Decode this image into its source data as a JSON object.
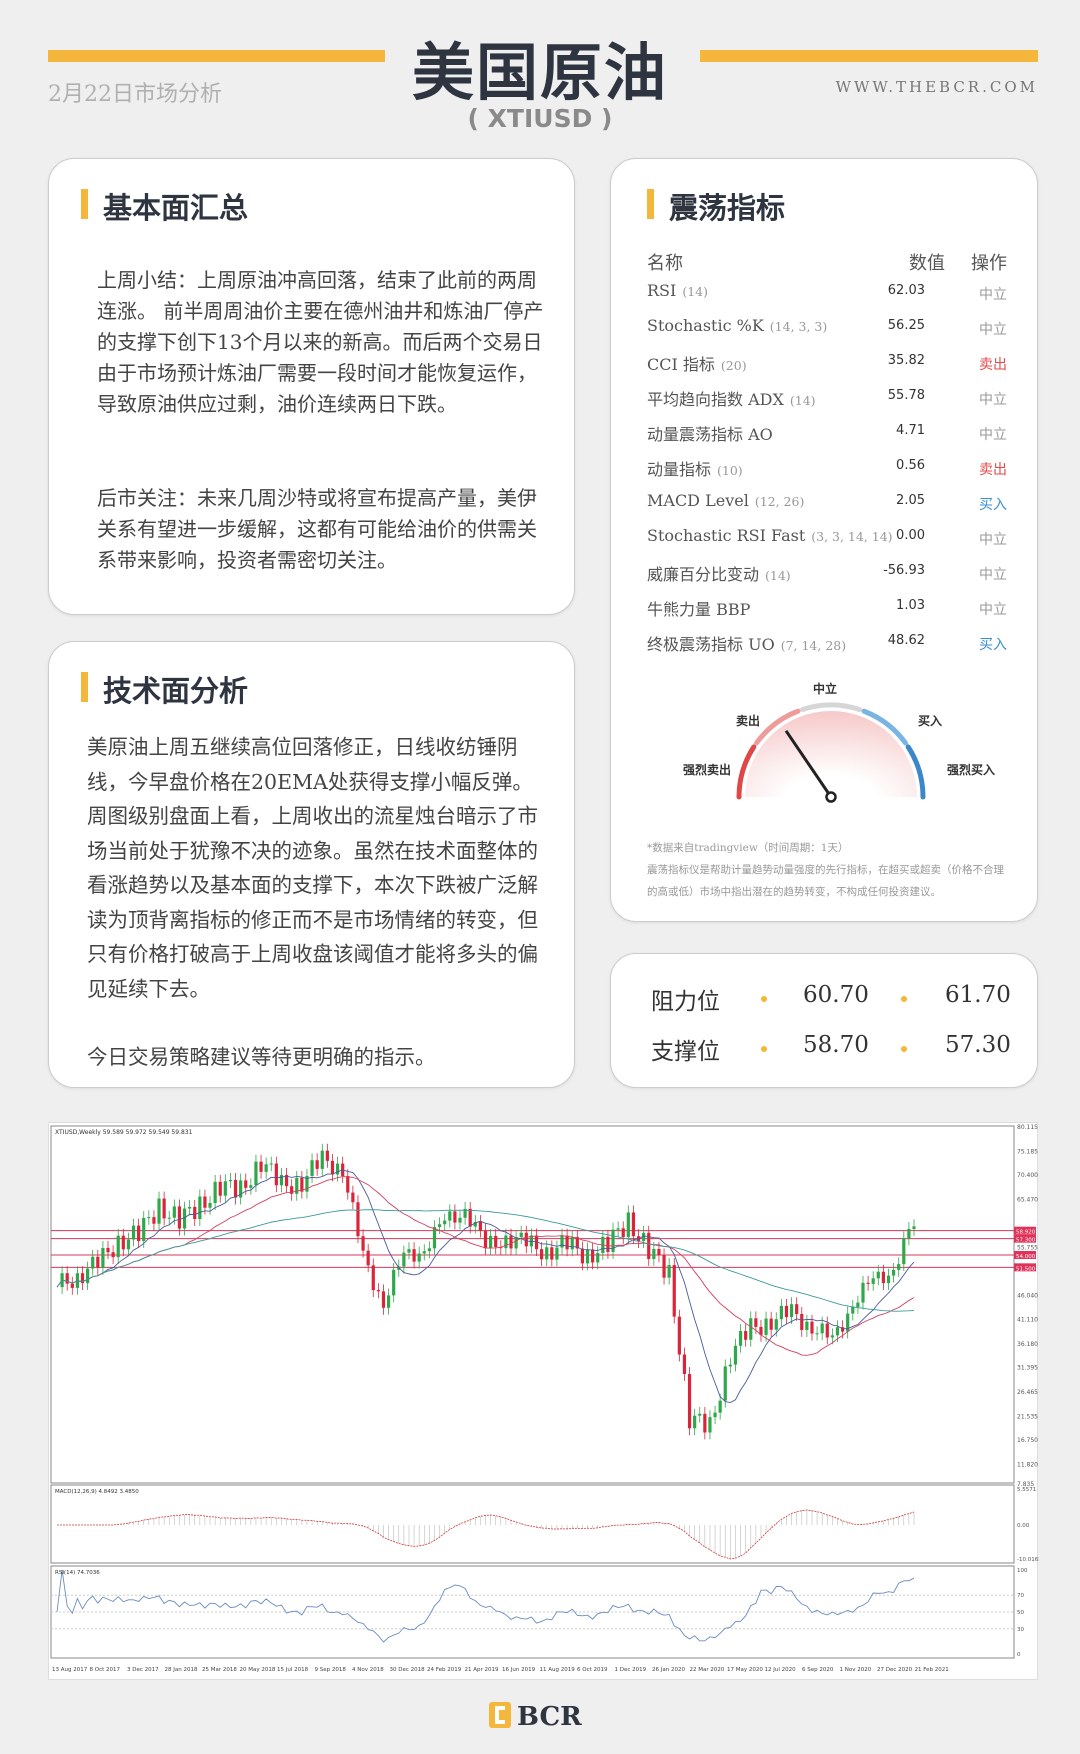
{
  "header": {
    "title": "美国原油",
    "symbol": "( XTIUSD )",
    "date": "2月22日市场分析",
    "website": "WWW.THEBCR.COM",
    "accent": "#f4b63b"
  },
  "fundamentals": {
    "heading": "基本面汇总",
    "para1": "上周小结：上周原油冲高回落，结束了此前的两周连涨。 前半周周油价主要在德州油井和炼油厂停产的支撑下创下13个月以来的新高。而后两个交易日由于市场预计炼油厂需要一段时间才能恢复运作，导致原油供应过剩，油价连续两日下跌。",
    "para2": "后市关注：未来几周沙特或将宣布提高产量，美伊关系有望进一步缓解，这都有可能给油价的供需关系带来影响，投资者需密切关注。"
  },
  "technical": {
    "heading": "技术面分析",
    "para1": "美原油上周五继续高位回落修正，日线收纺锤阴线，今早盘价格在20EMA处获得支撑小幅反弹。周图级别盘面上看，上周收出的流星烛台暗示了市场当前处于犹豫不决的迹象。虽然在技术面整体的看涨趋势以及基本面的支撑下，本次下跌被广泛解读为顶背离指标的修正而不是市场情绪的转变，但只有价格打破高于上周收盘该阈值才能将多头的偏见延续下去。",
    "para2": "今日交易策略建议等待更明确的指示。"
  },
  "oscillators": {
    "heading": "震荡指标",
    "col_name": "名称",
    "col_value": "数值",
    "col_action": "操作",
    "colors": {
      "neutral": "#999999",
      "sell": "#e24a4a",
      "buy": "#3a8fd6"
    },
    "rows": [
      {
        "name": "RSI",
        "params": "(14)",
        "value": "62.03",
        "action": "中立",
        "type": "neutral"
      },
      {
        "name": "Stochastic %K",
        "params": "(14, 3, 3)",
        "value": "56.25",
        "action": "中立",
        "type": "neutral"
      },
      {
        "name": "CCI 指标",
        "params": "(20)",
        "value": "35.82",
        "action": "卖出",
        "type": "sell"
      },
      {
        "name": "平均趋向指数 ADX",
        "params": "(14)",
        "value": "55.78",
        "action": "中立",
        "type": "neutral"
      },
      {
        "name": "动量震荡指标 AO",
        "params": "",
        "value": "4.71",
        "action": "中立",
        "type": "neutral"
      },
      {
        "name": "动量指标",
        "params": "(10)",
        "value": "0.56",
        "action": "卖出",
        "type": "sell"
      },
      {
        "name": "MACD Level",
        "params": "(12, 26)",
        "value": "2.05",
        "action": "买入",
        "type": "buy"
      },
      {
        "name": "Stochastic RSI Fast",
        "params": "(3, 3, 14, 14)",
        "value": "0.00",
        "action": "中立",
        "type": "neutral"
      },
      {
        "name": "威廉百分比变动",
        "params": "(14)",
        "value": "-56.93",
        "action": "中立",
        "type": "neutral"
      },
      {
        "name": "牛熊力量 BBP",
        "params": "",
        "value": "1.03",
        "action": "中立",
        "type": "neutral"
      },
      {
        "name": "终极震荡指标 UO",
        "params": "(7, 14, 28)",
        "value": "48.62",
        "action": "买入",
        "type": "buy"
      }
    ],
    "gauge": {
      "strong_sell": "强烈卖出",
      "sell": "卖出",
      "neutral": "中立",
      "buy": "买入",
      "strong_buy": "强烈买入",
      "level": -0.38
    },
    "note1": "*数据来自tradingview（时间周期：1天）",
    "note2": "震荡指标仪是帮助计量趋势动量强度的先行指标，在超买或超卖（价格不合理的高或低）市场中指出潜在的趋势转变，不构成任何投资建议。"
  },
  "levels": {
    "resistance_label": "阻力位",
    "r1": "60.70",
    "r2": "61.70",
    "support_label": "支撑位",
    "s1": "58.70",
    "s2": "57.30"
  },
  "chart_data": {
    "type": "candlestick",
    "symbol_header": "XTIUSD,Weekly  59.589 59.972 59.549 59.831",
    "macd_label": "MACD(12,26,9) 4.8492 3.4850",
    "rsi_label": "RSI(14) 74.7036",
    "price_ticks": [
      "80.115",
      "75.185",
      "70.400",
      "65.470",
      "55.755",
      "46.040",
      "41.110",
      "36.180",
      "31.395",
      "26.465",
      "21.535",
      "16.750",
      "11.820",
      "7.835"
    ],
    "ylim": [
      7.835,
      80.115
    ],
    "level_lines": [
      "58.920",
      "57.300",
      "54.000",
      "51.500"
    ],
    "macd_ticks": [
      "5.5571",
      "0.00",
      "-10.0165"
    ],
    "rsi_ticks": [
      "100",
      "70",
      "50",
      "30",
      "0"
    ],
    "date_ticks": [
      "13 Aug 2017",
      "8 Oct 2017",
      "3 Dec 2017",
      "28 Jan 2018",
      "25 Mar 2018",
      "20 May 2018",
      "15 Jul 2018",
      "9 Sep 2018",
      "4 Nov 2018",
      "30 Dec 2018",
      "24 Feb 2019",
      "21 Apr 2019",
      "16 Jun 2019",
      "11 Aug 2019",
      "6 Oct 2019",
      "1 Dec 2019",
      "26 Jan 2020",
      "22 Mar 2020",
      "17 May 2020",
      "12 Jul 2020",
      "6 Sep 2020",
      "1 Nov 2020",
      "27 Dec 2020",
      "21 Feb 2021"
    ],
    "monthly_close": [
      47.5,
      50,
      52,
      57,
      58,
      64,
      61,
      64,
      68,
      67,
      73,
      68,
      69,
      73,
      72,
      53,
      45,
      53,
      56,
      60,
      64,
      55,
      58,
      56,
      55,
      56,
      54,
      56,
      61,
      55,
      50,
      21,
      19,
      34,
      39,
      41,
      42,
      40,
      36,
      45,
      48,
      52,
      59.8
    ]
  },
  "footer": {
    "logo": "BCR"
  }
}
